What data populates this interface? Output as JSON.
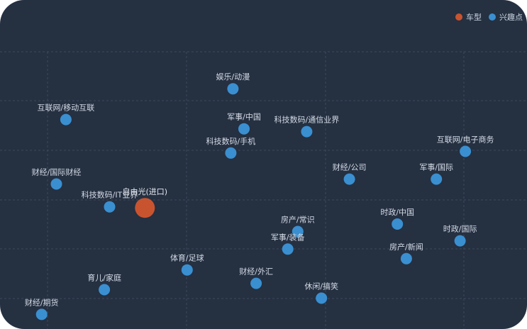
{
  "chart_data": {
    "type": "scatter",
    "title": "",
    "xlabel": "",
    "ylabel": "",
    "xlim": [
      0,
      100
    ],
    "ylim": [
      0,
      100
    ],
    "grid": true,
    "legend_position": "top-right",
    "legend": [
      {
        "name": "车型",
        "color": "#c8542f"
      },
      {
        "name": "兴趣点",
        "color": "#3a8fd0"
      }
    ],
    "series": [
      {
        "name": "车型",
        "color": "#c8542f",
        "points": [
          {
            "label": "自由光(进口)",
            "x": 27.5,
            "y": 43.1
          }
        ]
      },
      {
        "name": "兴趣点",
        "color": "#3a8fd0",
        "points": [
          {
            "label": "娱乐/动漫",
            "x": 44.2,
            "y": 86.5
          },
          {
            "label": "互联网/移动互联",
            "x": 12.5,
            "y": 75.3
          },
          {
            "label": "军事/中国",
            "x": 46.3,
            "y": 71.9
          },
          {
            "label": "科技数码/通信业界",
            "x": 58.2,
            "y": 70.9
          },
          {
            "label": "科技数码/手机",
            "x": 43.8,
            "y": 63.1
          },
          {
            "label": "互联网/电子商务",
            "x": 88.3,
            "y": 63.7
          },
          {
            "label": "财经/国际财经",
            "x": 10.7,
            "y": 51.8
          },
          {
            "label": "财经/公司",
            "x": 66.3,
            "y": 53.6
          },
          {
            "label": "军事/国际",
            "x": 82.8,
            "y": 53.6
          },
          {
            "label": "科技数码/IT业界",
            "x": 20.8,
            "y": 43.5
          },
          {
            "label": "时政/中国",
            "x": 75.4,
            "y": 37.2
          },
          {
            "label": "房产/常识",
            "x": 56.5,
            "y": 34.5
          },
          {
            "label": "时政/国际",
            "x": 87.3,
            "y": 31.1
          },
          {
            "label": "军事/装备",
            "x": 54.6,
            "y": 28.1
          },
          {
            "label": "房产/新闻",
            "x": 77.1,
            "y": 24.6
          },
          {
            "label": "体育/足球",
            "x": 35.5,
            "y": 20.5
          },
          {
            "label": "育儿/家庭",
            "x": 19.8,
            "y": 13.3
          },
          {
            "label": "财经/外汇",
            "x": 48.6,
            "y": 15.6
          },
          {
            "label": "休闲/搞笑",
            "x": 61.0,
            "y": 10.2
          },
          {
            "label": "财经/期货",
            "x": 7.9,
            "y": 4.3
          }
        ]
      }
    ]
  }
}
